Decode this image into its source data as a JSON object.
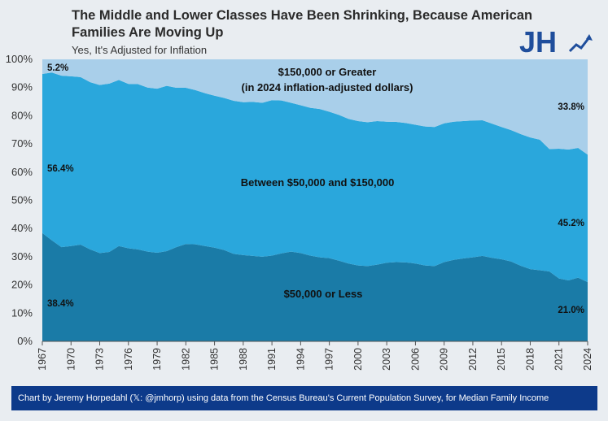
{
  "header": {
    "title_line1": "The Middle and Lower Classes Have Been Shrinking, Because American",
    "title_line2": "Families Are Moving Up",
    "subtitle": "Yes, It's Adjusted for Inflation"
  },
  "logo": {
    "text": "JH",
    "icon": "rising-arrow-icon",
    "color": "#1f4e9c"
  },
  "footer": {
    "text": "Chart by Jeremy Horpedahl (𝕏: @jmhorp) using data from the Census Bureau's Current Population Survey, for Median Family Income"
  },
  "colors": {
    "low": "#1a7ba7",
    "middle": "#2aa7dc",
    "high": "#a9cfea",
    "footer": "#0d3a8a"
  },
  "chart_data": {
    "type": "area",
    "stacked": true,
    "x": [
      1967,
      1968,
      1969,
      1970,
      1971,
      1972,
      1973,
      1974,
      1975,
      1976,
      1977,
      1978,
      1979,
      1980,
      1981,
      1982,
      1983,
      1984,
      1985,
      1986,
      1987,
      1988,
      1989,
      1990,
      1991,
      1992,
      1993,
      1994,
      1995,
      1996,
      1997,
      1998,
      1999,
      2000,
      2001,
      2002,
      2003,
      2004,
      2005,
      2006,
      2007,
      2008,
      2009,
      2010,
      2011,
      2012,
      2013,
      2014,
      2015,
      2016,
      2017,
      2018,
      2019,
      2020,
      2021,
      2022,
      2023,
      2024
    ],
    "series": [
      {
        "name": "$50,000 or Less",
        "values": [
          38.4,
          35.8,
          33.4,
          33.8,
          34.3,
          32.6,
          31.3,
          31.7,
          33.8,
          33.0,
          32.6,
          31.8,
          31.4,
          32.0,
          33.4,
          34.5,
          34.4,
          33.8,
          33.2,
          32.4,
          31.0,
          30.6,
          30.3,
          30.0,
          30.4,
          31.2,
          31.8,
          31.3,
          30.4,
          29.8,
          29.5,
          28.6,
          27.6,
          26.9,
          26.7,
          27.2,
          27.9,
          28.1,
          28.0,
          27.6,
          26.9,
          26.7,
          28.1,
          28.9,
          29.4,
          29.8,
          30.3,
          29.6,
          29.1,
          28.3,
          26.8,
          25.6,
          25.2,
          24.8,
          22.3,
          21.6,
          22.6,
          21.0
        ]
      },
      {
        "name": "Between $50,000 and $150,000",
        "values": [
          56.4,
          59.5,
          60.8,
          60.2,
          59.4,
          59.3,
          59.6,
          59.7,
          58.9,
          58.3,
          58.6,
          58.2,
          58.2,
          58.6,
          56.5,
          55.4,
          54.7,
          54.2,
          53.9,
          53.9,
          54.3,
          54.2,
          54.6,
          54.6,
          55.1,
          54.2,
          52.8,
          52.4,
          52.4,
          52.6,
          51.9,
          51.7,
          51.3,
          51.2,
          51.0,
          50.9,
          50.0,
          49.7,
          49.4,
          49.2,
          49.3,
          49.3,
          49.2,
          49.0,
          48.7,
          48.5,
          48.1,
          47.6,
          46.9,
          46.6,
          46.7,
          46.7,
          46.3,
          43.4,
          46.0,
          46.4,
          46.0,
          45.2
        ]
      },
      {
        "name": "$150,000 or Greater",
        "values": [
          5.2,
          4.7,
          5.8,
          6.0,
          6.3,
          8.1,
          9.1,
          8.6,
          7.3,
          8.7,
          8.8,
          10.0,
          10.4,
          9.4,
          10.1,
          10.1,
          10.9,
          12.0,
          12.9,
          13.7,
          14.7,
          15.2,
          15.1,
          15.4,
          14.5,
          14.6,
          15.4,
          16.3,
          17.2,
          17.6,
          18.6,
          19.7,
          21.1,
          21.9,
          22.3,
          21.9,
          22.1,
          22.2,
          22.6,
          23.2,
          23.8,
          24.0,
          22.7,
          22.1,
          21.9,
          21.7,
          21.6,
          22.8,
          24.0,
          25.1,
          26.5,
          27.7,
          28.5,
          31.8,
          31.7,
          32.0,
          31.4,
          33.8
        ]
      }
    ],
    "area_labels": [
      "$150,000 or Greater",
      "(in 2024 inflation-adjusted dollars)",
      "Between $50,000 and $150,000",
      "$50,000 or Less"
    ],
    "data_labels": {
      "high_first": "5.2%",
      "high_last": "33.8%",
      "mid_first": "56.4%",
      "mid_last": "45.2%",
      "low_first": "38.4%",
      "low_last": "21.0%"
    },
    "y_ticks": [
      "0%",
      "10%",
      "20%",
      "30%",
      "40%",
      "50%",
      "60%",
      "70%",
      "80%",
      "90%",
      "100%"
    ],
    "x_ticks": [
      "1967",
      "1970",
      "1973",
      "1976",
      "1979",
      "1982",
      "1985",
      "1988",
      "1991",
      "1994",
      "1997",
      "2000",
      "2003",
      "2006",
      "2009",
      "2012",
      "2015",
      "2018",
      "2021",
      "2024"
    ],
    "ylim": [
      0,
      100
    ],
    "xlim": [
      1967,
      2024
    ]
  }
}
